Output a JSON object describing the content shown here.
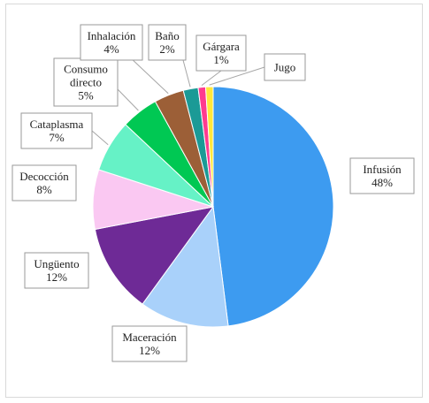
{
  "chart_data": {
    "type": "pie",
    "title": "",
    "slices": [
      {
        "name": "Infusión",
        "value": 48,
        "label": "48%",
        "color": "#3d9bf0"
      },
      {
        "name": "Maceración",
        "value": 12,
        "label": "12%",
        "color": "#a9d1fa"
      },
      {
        "name": "Ungüento",
        "value": 12,
        "label": "12%",
        "color": "#6e2a96"
      },
      {
        "name": "Decocción",
        "value": 8,
        "label": "8%",
        "color": "#fac8f2"
      },
      {
        "name": "Cataplasma",
        "value": 7,
        "label": "7%",
        "color": "#66f2c6"
      },
      {
        "name": "Consumo directo",
        "value": 5,
        "label": "5%",
        "color": "#00c853"
      },
      {
        "name": "Inhalación",
        "value": 4,
        "label": "4%",
        "color": "#9c5f37"
      },
      {
        "name": "Baño",
        "value": 2,
        "label": "2%",
        "color": "#1b9a96"
      },
      {
        "name": "Gárgara",
        "value": 1,
        "label": "1%",
        "color": "#ff3b8f"
      },
      {
        "name": "Jugo",
        "value": 1,
        "label": "",
        "color": "#ffe83b"
      }
    ]
  }
}
